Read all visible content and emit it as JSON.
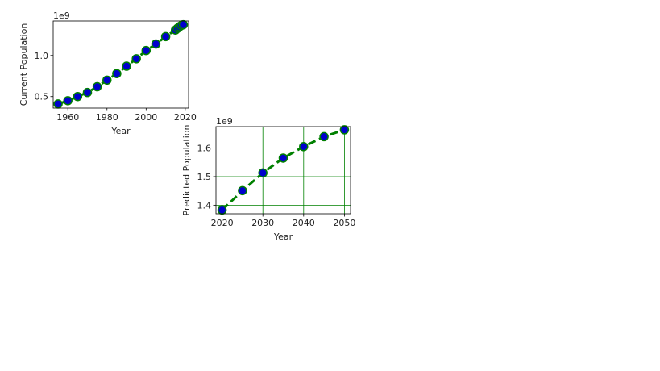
{
  "chart_data": [
    {
      "type": "line",
      "xlabel": "Year",
      "ylabel": "Current Population",
      "offset_text": "1e9",
      "xlim": [
        1952.5,
        2021.7
      ],
      "ylim": [
        0.36,
        1.42
      ],
      "x_ticks": [
        1960,
        1980,
        2000,
        2020
      ],
      "x_tick_labels": [
        "1960",
        "1980",
        "2000",
        "2020"
      ],
      "y_ticks": [
        0.5,
        1.0
      ],
      "y_tick_labels": [
        "0.5",
        "1.0"
      ],
      "grid": false,
      "series": [
        {
          "x": [
            1955,
            1960,
            1965,
            1970,
            1975,
            1980,
            1985,
            1990,
            1995,
            2000,
            2005,
            2010,
            2015,
            2016,
            2017,
            2018,
            2019
          ],
          "y": [
            0.41,
            0.45,
            0.5,
            0.55,
            0.62,
            0.7,
            0.78,
            0.87,
            0.96,
            1.06,
            1.14,
            1.23,
            1.31,
            1.33,
            1.35,
            1.365,
            1.375
          ],
          "values_scale": "1e9",
          "line_color": "#008000",
          "line_style": "dashed",
          "marker_color": "#0000cd",
          "marker_edge_color": "#008000"
        }
      ]
    },
    {
      "type": "line",
      "xlabel": "Year",
      "ylabel": "Predicted Population",
      "offset_text": "1e9",
      "xlim": [
        2018.5,
        2051.5
      ],
      "ylim": [
        1.37,
        1.675
      ],
      "x_ticks": [
        2020,
        2030,
        2040,
        2050
      ],
      "x_tick_labels": [
        "2020",
        "2030",
        "2040",
        "2050"
      ],
      "y_ticks": [
        1.4,
        1.5,
        1.6
      ],
      "y_tick_labels": [
        "1.4",
        "1.5",
        "1.6"
      ],
      "grid": true,
      "grid_color": "#008000",
      "series": [
        {
          "x": [
            2020,
            2025,
            2030,
            2035,
            2040,
            2045,
            2050
          ],
          "y": [
            1.383,
            1.451,
            1.513,
            1.565,
            1.605,
            1.64,
            1.664
          ],
          "values_scale": "1e9",
          "line_color": "#008000",
          "line_style": "dashed",
          "marker_color": "#0000cd",
          "marker_edge_color": "#008000"
        }
      ]
    }
  ]
}
